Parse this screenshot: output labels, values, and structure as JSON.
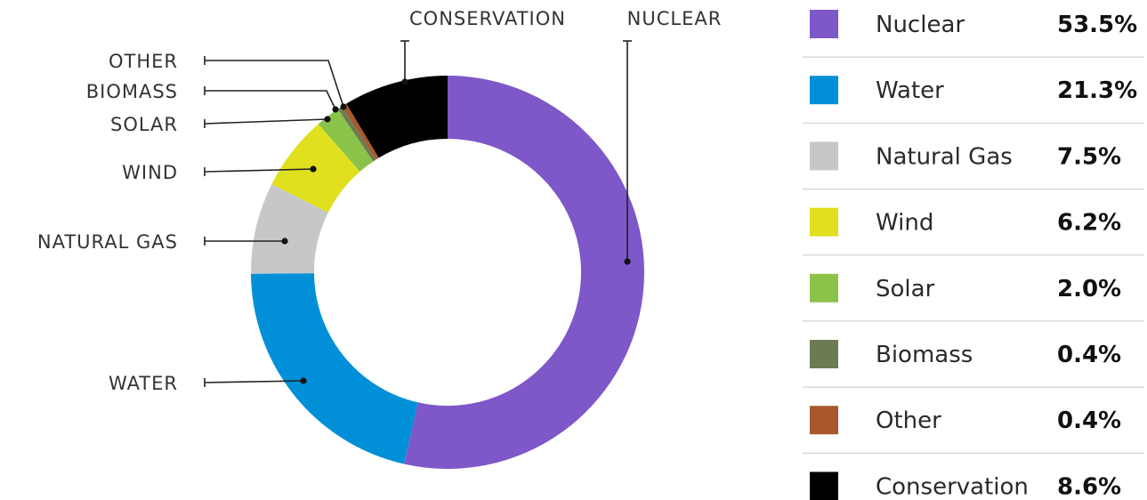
{
  "chart_data": {
    "type": "pie",
    "variant": "donut",
    "title": "",
    "start_angle_deg": 0,
    "direction": "clockwise",
    "slices": [
      {
        "label": "Nuclear",
        "callout": "NUCLEAR",
        "value": 53.5,
        "display": "53.5%",
        "color": "#7e57c8"
      },
      {
        "label": "Water",
        "callout": "WATER",
        "value": 21.3,
        "display": "21.3%",
        "color": "#0190d8"
      },
      {
        "label": "Natural Gas",
        "callout": "NATURAL GAS",
        "value": 7.5,
        "display": "7.5%",
        "color": "#c6c7c9"
      },
      {
        "label": "Wind",
        "callout": "WIND",
        "value": 6.2,
        "display": "6.2%",
        "color": "#e0e01e"
      },
      {
        "label": "Solar",
        "callout": "SOLAR",
        "value": 2.0,
        "display": "2.0%",
        "color": "#8bc34a"
      },
      {
        "label": "Biomass",
        "callout": "BIOMASS",
        "value": 0.4,
        "display": "0.4%",
        "color": "#6d7b52"
      },
      {
        "label": "Other",
        "callout": "OTHER",
        "value": 0.4,
        "display": "0.4%",
        "color": "#a9582b"
      },
      {
        "label": "Conservation",
        "callout": "CONSERVATION",
        "value": 8.6,
        "display": "8.6%",
        "color": "#000000"
      }
    ],
    "legend_position": "right"
  }
}
